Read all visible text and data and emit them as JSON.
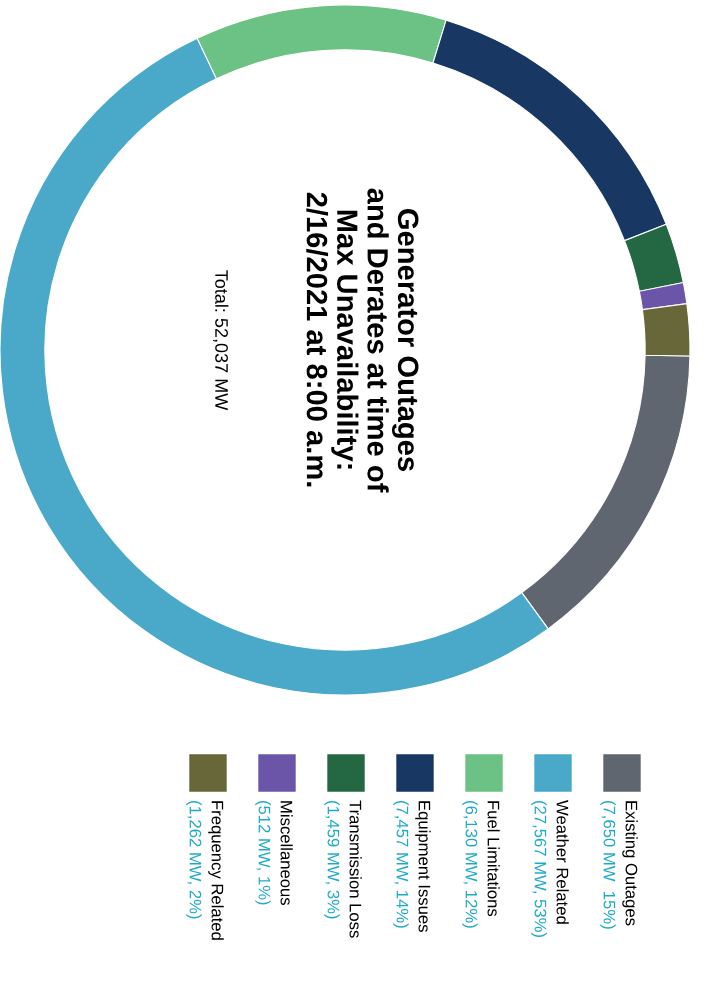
{
  "chart_data": {
    "type": "donut",
    "title": "Generator Outages\nand Derates at time of\nMax Unavailability:\n2/16/2021 at 8:00 a.m.",
    "subtitle": "Total: 52,037 MW",
    "categories": [
      "Existing Outages",
      "Weather Related",
      "Fuel Limitations",
      "Equipment Issues",
      "Transmission Loss",
      "Miscellaneous",
      "Frequency Related"
    ],
    "values": [
      7650,
      27567,
      6130,
      7457,
      1459,
      512,
      1262
    ],
    "colors": [
      "#5f6670",
      "#4aa8c8",
      "#6cc184",
      "#183763",
      "#246843",
      "#6b55a8",
      "#67673a"
    ],
    "value_labels": [
      "(7,650 MW  15%)",
      "(27,567 MW, 53%)",
      "(6,130 MW, 12%)",
      "(7,457 MW, 14%)",
      "(1,459 MW, 3%)",
      "(512 MW, 1%)",
      "(1,262 MW, 2%)"
    ],
    "legend": "bottom"
  }
}
